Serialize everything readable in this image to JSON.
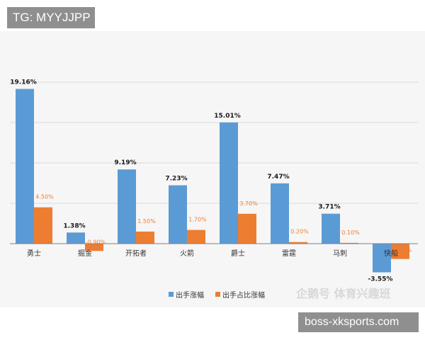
{
  "header_tag": {
    "text": "TG: MYYJJPP"
  },
  "footer_tag": {
    "text": "boss-xksports.com"
  },
  "watermark": {
    "text": "企鹅号 体育兴趣班"
  },
  "colors": {
    "series_1": "#5b9bd5",
    "series_2": "#ed7d31",
    "background": "#f6f6f6",
    "gridline": "#d9d9d9"
  },
  "chart_data": {
    "type": "bar",
    "title": "",
    "xlabel": "",
    "ylabel": "",
    "ylim": [
      -4,
      20
    ],
    "grid": true,
    "legend_position": "bottom",
    "categories": [
      "勇士",
      "掘金",
      "开拓者",
      "火箭",
      "爵士",
      "雷霆",
      "马刺",
      "快船"
    ],
    "series": [
      {
        "name": "出手涨幅",
        "values": [
          19.16,
          1.38,
          9.19,
          7.23,
          15.01,
          7.47,
          3.71,
          -3.55
        ],
        "labels": [
          "19.16%",
          "1.38%",
          "9.19%",
          "7.23%",
          "15.01%",
          "7.47%",
          "3.71%",
          "-3.55%"
        ]
      },
      {
        "name": "出手占比涨幅",
        "values": [
          4.5,
          -0.9,
          1.5,
          1.7,
          3.7,
          0.2,
          0.1,
          -1.9
        ],
        "labels": [
          "4.50%",
          "-0.90%",
          "1.50%",
          "1.70%",
          "3.70%",
          "0.20%",
          "0.10%",
          "-1.90%"
        ]
      }
    ]
  }
}
